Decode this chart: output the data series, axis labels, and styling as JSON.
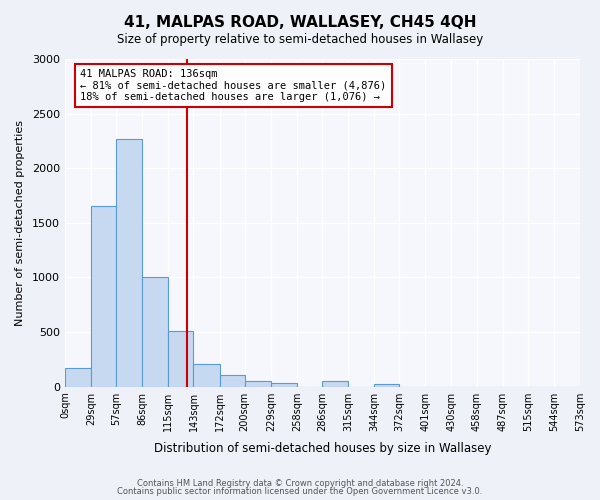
{
  "title": "41, MALPAS ROAD, WALLASEY, CH45 4QH",
  "subtitle": "Size of property relative to semi-detached houses in Wallasey",
  "xlabel": "Distribution of semi-detached houses by size in Wallasey",
  "ylabel": "Number of semi-detached properties",
  "bin_edges": [
    0,
    29,
    57,
    86,
    115,
    143,
    172,
    200,
    229,
    258,
    286,
    315,
    344,
    372,
    401,
    430,
    458,
    487,
    515,
    544,
    573
  ],
  "bin_labels": [
    "0sqm",
    "29sqm",
    "57sqm",
    "86sqm",
    "115sqm",
    "143sqm",
    "172sqm",
    "200sqm",
    "229sqm",
    "258sqm",
    "286sqm",
    "315sqm",
    "344sqm",
    "372sqm",
    "401sqm",
    "430sqm",
    "458sqm",
    "487sqm",
    "515sqm",
    "544sqm",
    "573sqm"
  ],
  "bar_heights": [
    175,
    1650,
    2270,
    1000,
    510,
    205,
    110,
    55,
    30,
    0,
    50,
    0,
    25,
    0,
    0,
    0,
    0,
    0,
    0,
    0
  ],
  "bar_color": "#c6d9f0",
  "bar_edge_color": "#5b9bd5",
  "property_value": 136,
  "vline_color": "#cc0000",
  "annotation_title": "41 MALPAS ROAD: 136sqm",
  "annotation_line1": "← 81% of semi-detached houses are smaller (4,876)",
  "annotation_line2": "18% of semi-detached houses are larger (1,076) →",
  "annotation_box_color": "#ffffff",
  "annotation_box_edge": "#cc0000",
  "ylim": [
    0,
    3000
  ],
  "yticks": [
    0,
    500,
    1000,
    1500,
    2000,
    2500,
    3000
  ],
  "footer1": "Contains HM Land Registry data © Crown copyright and database right 2024.",
  "footer2": "Contains public sector information licensed under the Open Government Licence v3.0.",
  "bg_color": "#eef2f8",
  "plot_bg_color": "#f5f7fc"
}
